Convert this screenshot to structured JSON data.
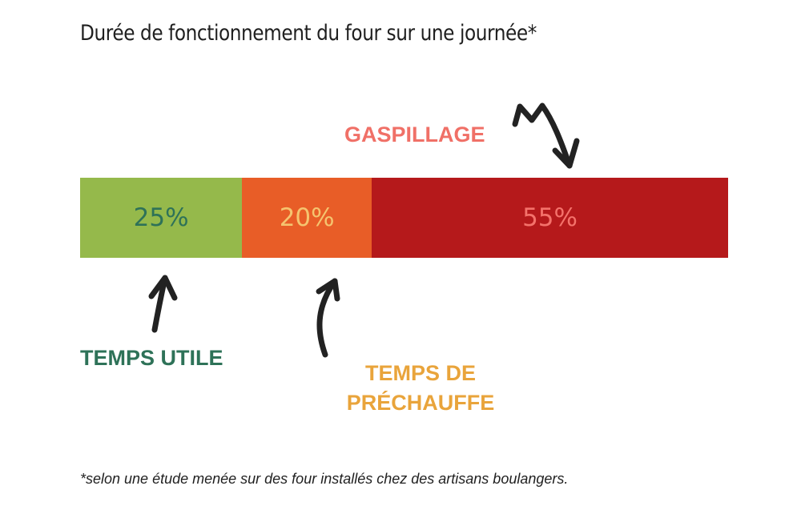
{
  "title": "Durée de fonctionnement du four sur une journée*",
  "footnote": "*selon une étude menée sur des four installés chez des artisans boulangers.",
  "colors": {
    "useful_bg": "#95b94b",
    "useful_text": "#2e7258",
    "preheat_bg": "#e85d27",
    "preheat_text": "#f5c46f",
    "waste_bg": "#b5191b",
    "waste_text": "#f4726b",
    "label_useful": "#2e7258",
    "label_preheat": "#e9a43b",
    "label_waste": "#f07067",
    "arrow": "#222222"
  },
  "chart_data": {
    "type": "bar",
    "orientation": "horizontal-stacked",
    "categories": [
      "TEMPS UTILE",
      "TEMPS DE PRÉCHAUFFE",
      "GASPILLAGE"
    ],
    "values": [
      25,
      20,
      55
    ],
    "value_labels": [
      "25%",
      "20%",
      "55%"
    ],
    "unit": "%",
    "title": "Durée de fonctionnement du four sur une journée*"
  },
  "labels": {
    "useful": "TEMPS UTILE",
    "preheat_line1": "TEMPS DE",
    "preheat_line2": "PRÉCHAUFFE",
    "waste": "GASPILLAGE"
  }
}
